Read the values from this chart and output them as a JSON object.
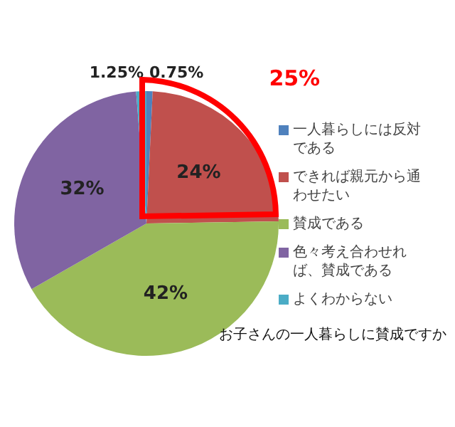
{
  "chart_data": {
    "type": "pie",
    "title": "お子さんの一人暮らしに賛成ですか",
    "categories": [
      "一人暮らしには反対である",
      "できれば親元から通わせたい",
      "賛成である",
      "色々考え合わせれば、賛成である",
      "よくわからない"
    ],
    "values": [
      0.75,
      24,
      42,
      32,
      1.25
    ],
    "value_labels": [
      "0.75%",
      "24%",
      "42%",
      "32%",
      "1.25%"
    ],
    "colors": [
      "#4f81bd",
      "#c0504d",
      "#9bbb59",
      "#8064a2",
      "#4bacc6"
    ],
    "annotations": [
      "25%"
    ],
    "legend": "right"
  }
}
